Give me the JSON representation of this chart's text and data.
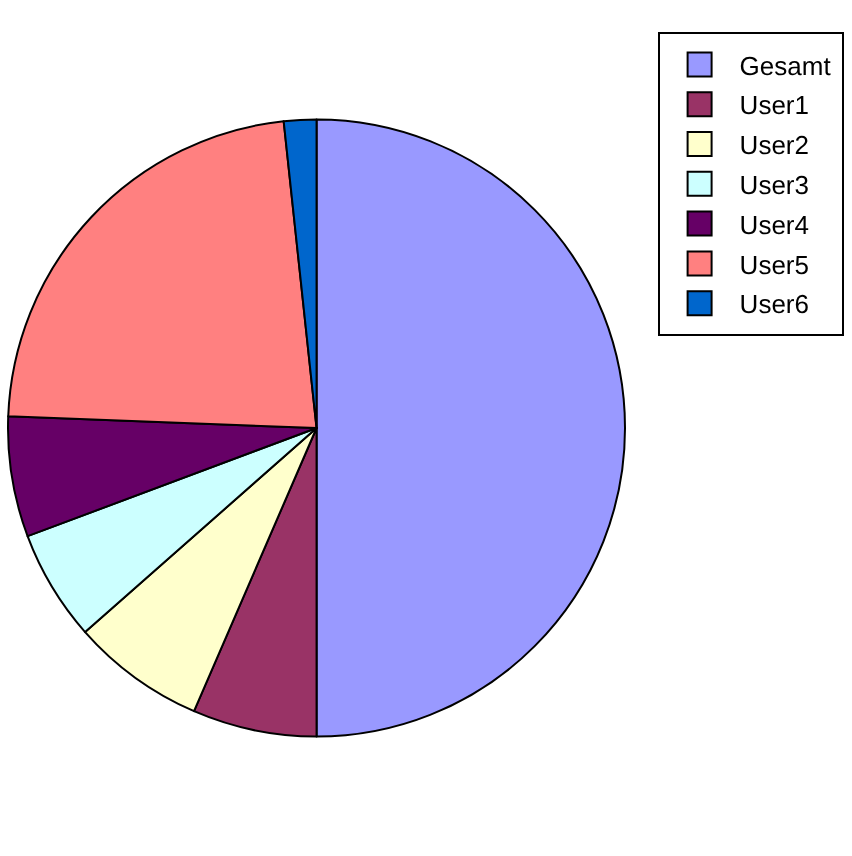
{
  "chart_data": {
    "type": "pie",
    "categories": [
      "Gesamt",
      "User1",
      "User2",
      "User3",
      "User4",
      "User5",
      "User6"
    ],
    "values": [
      50,
      6.5,
      7,
      5.8,
      6.3,
      22.7,
      1.7
    ],
    "colors": [
      "#9999ff",
      "#993366",
      "#ffffcc",
      "#ccffff",
      "#660066",
      "#ff8080",
      "#0066cc"
    ],
    "legend": "top right"
  }
}
